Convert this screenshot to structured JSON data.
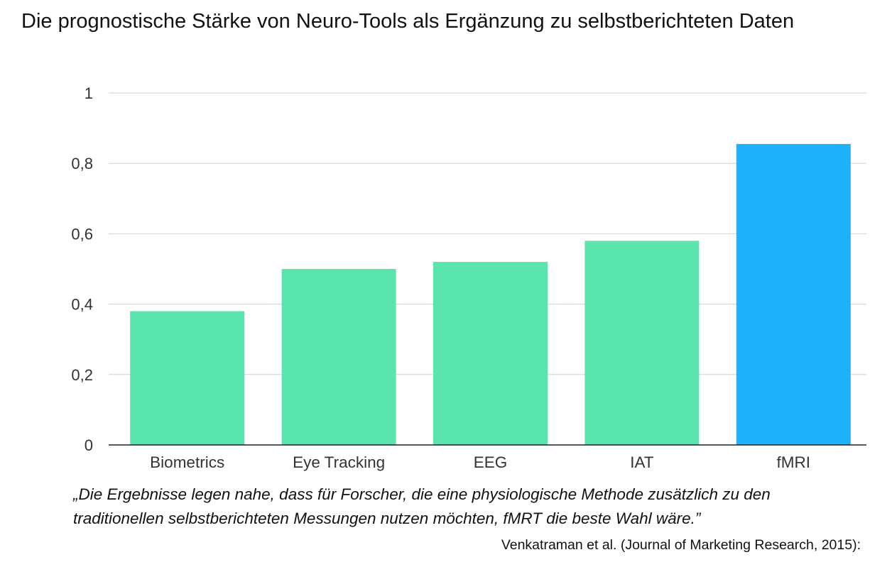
{
  "title": "Die prognostische Stärke von Neuro-Tools als Ergänzung zu selbstberichteten Daten",
  "quote": "„Die Ergebnisse legen nahe, dass für Forscher, die eine physiologische Methode zusätzlich zu den traditionellen selbstberichteten Messungen nutzen möchten, fMRT die beste Wahl wäre.”",
  "source": "Venkatraman et al. (Journal of Marketing Research, 2015):",
  "colors": {
    "bar_default": "#5be5ae",
    "bar_highlight": "#1db2fb",
    "gridline": "#cfcfcf",
    "axis": "#222222",
    "tick_text": "#333333"
  },
  "chart_data": {
    "type": "bar",
    "title": "Die prognostische Stärke von Neuro-Tools als Ergänzung zu selbstberichteten Daten",
    "xlabel": "",
    "ylabel": "",
    "categories": [
      "Biometrics",
      "Eye Tracking",
      "EEG",
      "IAT",
      "fMRI"
    ],
    "values": [
      0.38,
      0.5,
      0.52,
      0.58,
      0.855
    ],
    "highlight_category": "fMRI",
    "ylim": [
      0,
      1
    ],
    "yticks": [
      0,
      0.2,
      0.4,
      0.6,
      0.8,
      1
    ],
    "ytick_labels": [
      "0",
      "0,2",
      "0,4",
      "0,6",
      "0,8",
      "1"
    ],
    "grid": true,
    "legend": "none"
  }
}
